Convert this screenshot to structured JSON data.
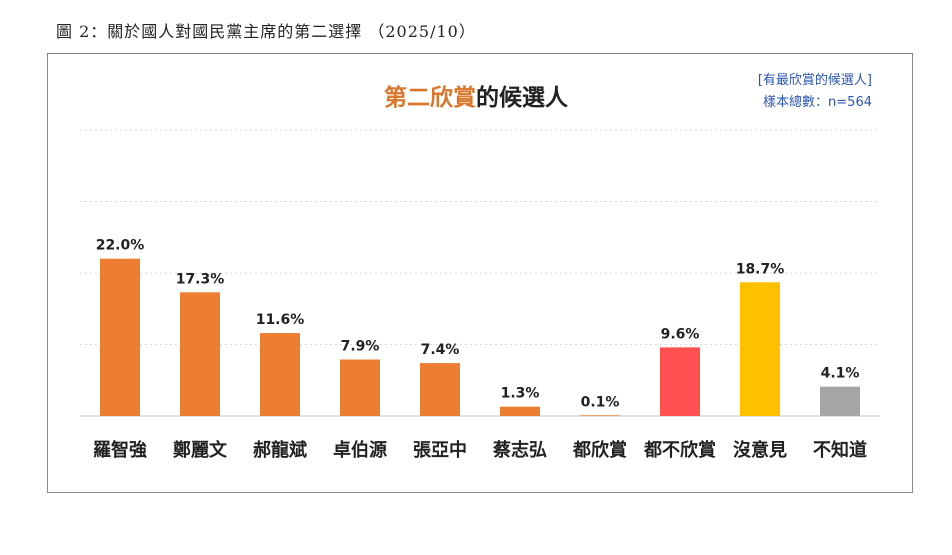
{
  "caption": "圖 2：關於國人對國民黨主席的第二選擇 （2025/10）",
  "chart_data": {
    "type": "bar",
    "title_accent": "第二欣賞",
    "title_rest": "的候選人",
    "note_line1": "[有最欣賞的候選人]",
    "note_line2": "樣本總數：n=564",
    "categories": [
      "羅智強",
      "鄭麗文",
      "郝龍斌",
      "卓伯源",
      "張亞中",
      "蔡志弘",
      "都欣賞",
      "都不欣賞",
      "沒意見",
      "不知道"
    ],
    "values": [
      22.0,
      17.3,
      11.6,
      7.9,
      7.4,
      1.3,
      0.1,
      9.6,
      18.7,
      4.1
    ],
    "value_labels": [
      "22.0%",
      "17.3%",
      "11.6%",
      "7.9%",
      "7.4%",
      "1.3%",
      "0.1%",
      "9.6%",
      "18.7%",
      "4.1%"
    ],
    "colors": [
      "#ed7d31",
      "#ed7d31",
      "#ed7d31",
      "#ed7d31",
      "#ed7d31",
      "#ed7d31",
      "#ed7d31",
      "#ff5050",
      "#ffc000",
      "#a5a5a5"
    ],
    "ylim": [
      0,
      40
    ],
    "grid": true,
    "xlabel": "",
    "ylabel": ""
  }
}
